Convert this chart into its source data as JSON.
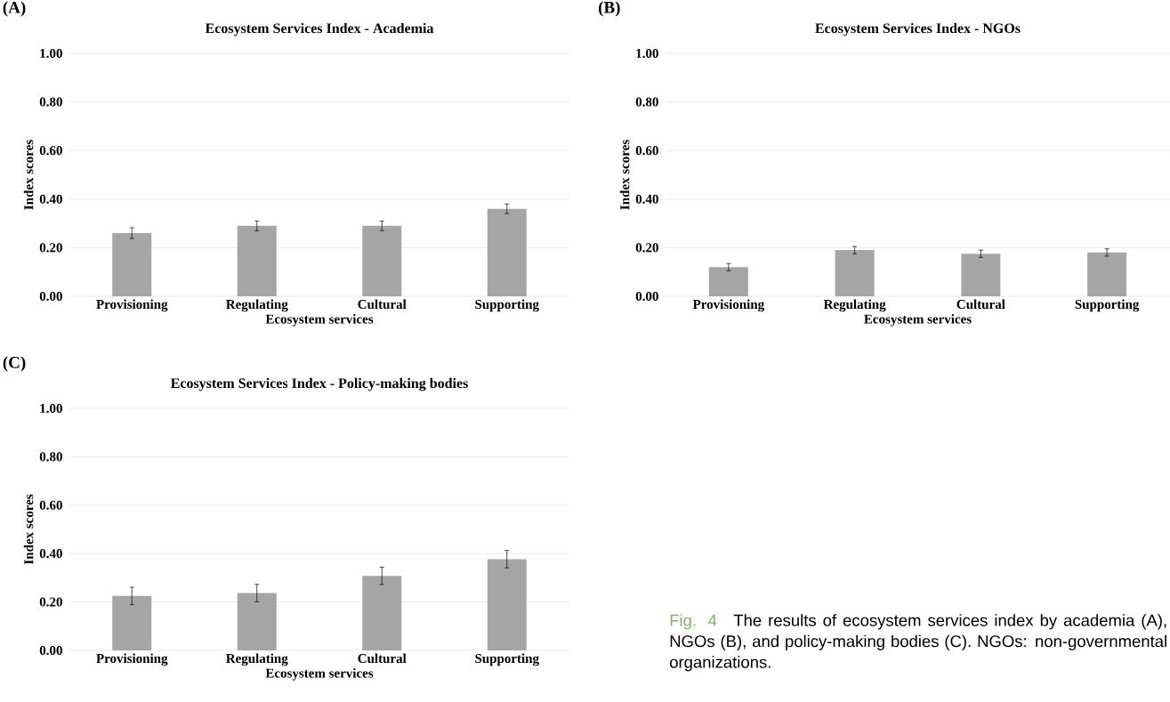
{
  "chart_data": [
    {
      "type": "bar",
      "title": "Ecosystem Services Index - Academia",
      "annotations": [
        "(A)"
      ],
      "xlabel": "Ecosystem services",
      "ylabel": "Index scores",
      "categories": [
        "Provisioning",
        "Regulating",
        "Cultural",
        "Supporting"
      ],
      "values": [
        0.26,
        0.29,
        0.29,
        0.36
      ],
      "errors": [
        0.022,
        0.02,
        0.02,
        0.02
      ],
      "color": "#a5a5a5",
      "ylim": [
        0,
        1
      ],
      "yticks": [
        {
          "value": 0,
          "label": "0.00"
        },
        {
          "value": 0.2,
          "label": "0.20"
        },
        {
          "value": 0.4,
          "label": "0.40"
        },
        {
          "value": 0.6,
          "label": "0.60"
        },
        {
          "value": 0.8,
          "label": "0.80"
        },
        {
          "value": 1,
          "label": "1.00"
        }
      ],
      "grid": "y"
    },
    {
      "type": "bar",
      "title": "Ecosystem Services Index - NGOs",
      "annotations": [
        "(B)"
      ],
      "xlabel": "Ecosystem services",
      "ylabel": "Index scores",
      "categories": [
        "Provisioning",
        "Regulating",
        "Cultural",
        "Supporting"
      ],
      "values": [
        0.12,
        0.19,
        0.175,
        0.18
      ],
      "errors": [
        0.015,
        0.015,
        0.015,
        0.015
      ],
      "color": "#a5a5a5",
      "ylim": [
        0,
        1
      ],
      "yticks": [
        {
          "value": 0,
          "label": "0.00"
        },
        {
          "value": 0.2,
          "label": "0.20"
        },
        {
          "value": 0.4,
          "label": "0.40"
        },
        {
          "value": 0.6,
          "label": "0.60"
        },
        {
          "value": 0.8,
          "label": "0.80"
        },
        {
          "value": 1,
          "label": "1.00"
        }
      ],
      "grid": "y"
    },
    {
      "type": "bar",
      "title": "Ecosystem Services Index - Policy-making bodies",
      "annotations": [
        "(C)"
      ],
      "xlabel": "Ecosystem services",
      "ylabel": "Index scores",
      "categories": [
        "Provisioning",
        "Regulating",
        "Cultural",
        "Supporting"
      ],
      "values": [
        0.225,
        0.237,
        0.308,
        0.377
      ],
      "errors": [
        0.036,
        0.036,
        0.036,
        0.036
      ],
      "color": "#a5a5a5",
      "ylim": [
        0,
        1
      ],
      "yticks": [
        {
          "value": 0,
          "label": "0.00"
        },
        {
          "value": 0.2,
          "label": "0.20"
        },
        {
          "value": 0.4,
          "label": "0.40"
        },
        {
          "value": 0.6,
          "label": "0.60"
        },
        {
          "value": 0.8,
          "label": "0.80"
        },
        {
          "value": 1,
          "label": "1.00"
        }
      ],
      "grid": "y"
    },
    {
      "type": "other",
      "annotations": [
        "Fig. 4",
        "The results of ecosystem services index by academia (A), NGOs (B), and policy-making bodies (C). NGOs: non-governmental organizations."
      ]
    }
  ]
}
